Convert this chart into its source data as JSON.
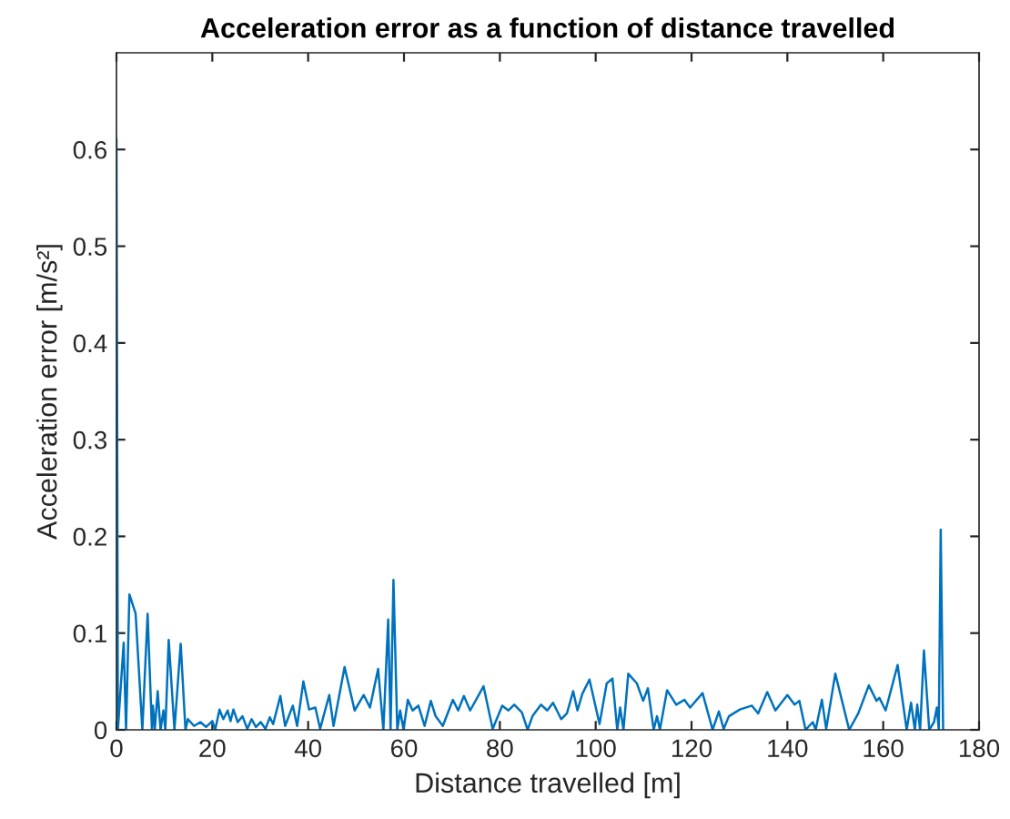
{
  "chart_data": {
    "type": "line",
    "title": "Acceleration error as a function of distance travelled",
    "xlabel": "Distance travelled [m]",
    "ylabel": "Acceleration error [m/s²]",
    "series": [
      {
        "color": "#0072bd",
        "x": [
          0,
          0.3,
          1.5,
          2.0,
          2.7,
          4.0,
          5.4,
          6.5,
          7.4,
          7.6,
          8.0,
          8.6,
          9.2,
          9.8,
          10.2,
          10.9,
          12.1,
          13.4,
          14.4,
          14.9,
          16.2,
          17.5,
          18.7,
          20.0,
          20.6,
          21.5,
          22.3,
          23.2,
          23.8,
          24.4,
          25.3,
          26.3,
          27.3,
          28.2,
          29.1,
          30.1,
          31.1,
          32.0,
          32.7,
          34.2,
          35.2,
          36.8,
          37.7,
          39.0,
          40.2,
          41.5,
          42.5,
          44.4,
          45.3,
          47.6,
          49.7,
          51.6,
          52.9,
          54.6,
          55.7,
          56.7,
          57.2,
          57.8,
          58.6,
          59.2,
          59.9,
          60.8,
          61.8,
          63.0,
          64.3,
          65.6,
          66.6,
          68.1,
          70.2,
          71.3,
          72.5,
          73.8,
          76.6,
          78.5,
          80.5,
          81.8,
          83.0,
          84.6,
          85.8,
          86.8,
          88.6,
          89.9,
          91.1,
          92.8,
          94.0,
          95.3,
          96.2,
          97.2,
          98.7,
          100.8,
          102.3,
          103.5,
          104.5,
          105.1,
          105.8,
          106.8,
          108.6,
          109.9,
          110.9,
          112.1,
          112.8,
          113.4,
          114.9,
          116.8,
          118.5,
          119.7,
          122.3,
          124.4,
          125.7,
          126.7,
          127.8,
          130.1,
          132.6,
          133.9,
          135.8,
          137.5,
          140.0,
          141.5,
          142.5,
          143.8,
          145.3,
          145.9,
          147.2,
          148.1,
          150.0,
          151.6,
          152.9,
          154.8,
          157.0,
          158.6,
          159.2,
          160.5,
          163.0,
          164.9,
          165.8,
          166.6,
          167.1,
          167.7,
          168.5,
          169.6,
          170.6,
          171.2,
          171.6,
          172.0,
          172.5
        ],
        "values": [
          0.61,
          0,
          0.09,
          0,
          0.14,
          0.12,
          0,
          0.12,
          0,
          0.025,
          0,
          0.04,
          0,
          0.02,
          0,
          0.093,
          0,
          0.089,
          0,
          0.011,
          0.004,
          0.008,
          0.003,
          0.009,
          0,
          0.021,
          0.011,
          0.02,
          0.009,
          0.021,
          0.008,
          0.014,
          0.001,
          0.011,
          0.003,
          0.008,
          0.001,
          0.013,
          0.006,
          0.035,
          0.004,
          0.025,
          0.004,
          0.05,
          0.021,
          0.023,
          0.001,
          0.036,
          0.004,
          0.065,
          0.02,
          0.036,
          0.023,
          0.063,
          0,
          0.114,
          0,
          0.155,
          0,
          0.02,
          0,
          0.031,
          0.02,
          0.025,
          0.004,
          0.03,
          0.014,
          0.004,
          0.031,
          0.02,
          0.035,
          0.02,
          0.045,
          0.001,
          0.025,
          0.02,
          0.026,
          0.018,
          0,
          0.014,
          0.026,
          0.02,
          0.028,
          0.011,
          0.017,
          0.04,
          0.02,
          0.037,
          0.052,
          0.006,
          0.048,
          0.053,
          0,
          0.023,
          0,
          0.058,
          0.048,
          0.03,
          0.043,
          0,
          0.014,
          0,
          0.041,
          0.026,
          0.031,
          0.023,
          0.038,
          0,
          0.019,
          0.001,
          0.014,
          0.021,
          0.025,
          0.017,
          0.039,
          0.02,
          0.036,
          0.026,
          0.03,
          0,
          0.008,
          0,
          0.031,
          0.001,
          0.058,
          0.026,
          0,
          0.017,
          0.046,
          0.03,
          0.033,
          0.02,
          0.067,
          0,
          0.028,
          0,
          0.026,
          0,
          0.082,
          0,
          0.008,
          0.023,
          0,
          0.207,
          0
        ]
      }
    ],
    "xlim": [
      0,
      180
    ],
    "xticks": [
      0,
      20,
      40,
      60,
      80,
      100,
      120,
      140,
      160,
      180
    ],
    "ylim": [
      0,
      0.7
    ],
    "yticks": [
      0,
      0.1,
      0.2,
      0.3,
      0.4,
      0.5,
      0.6
    ],
    "marker": "none",
    "line_style": "solid"
  }
}
